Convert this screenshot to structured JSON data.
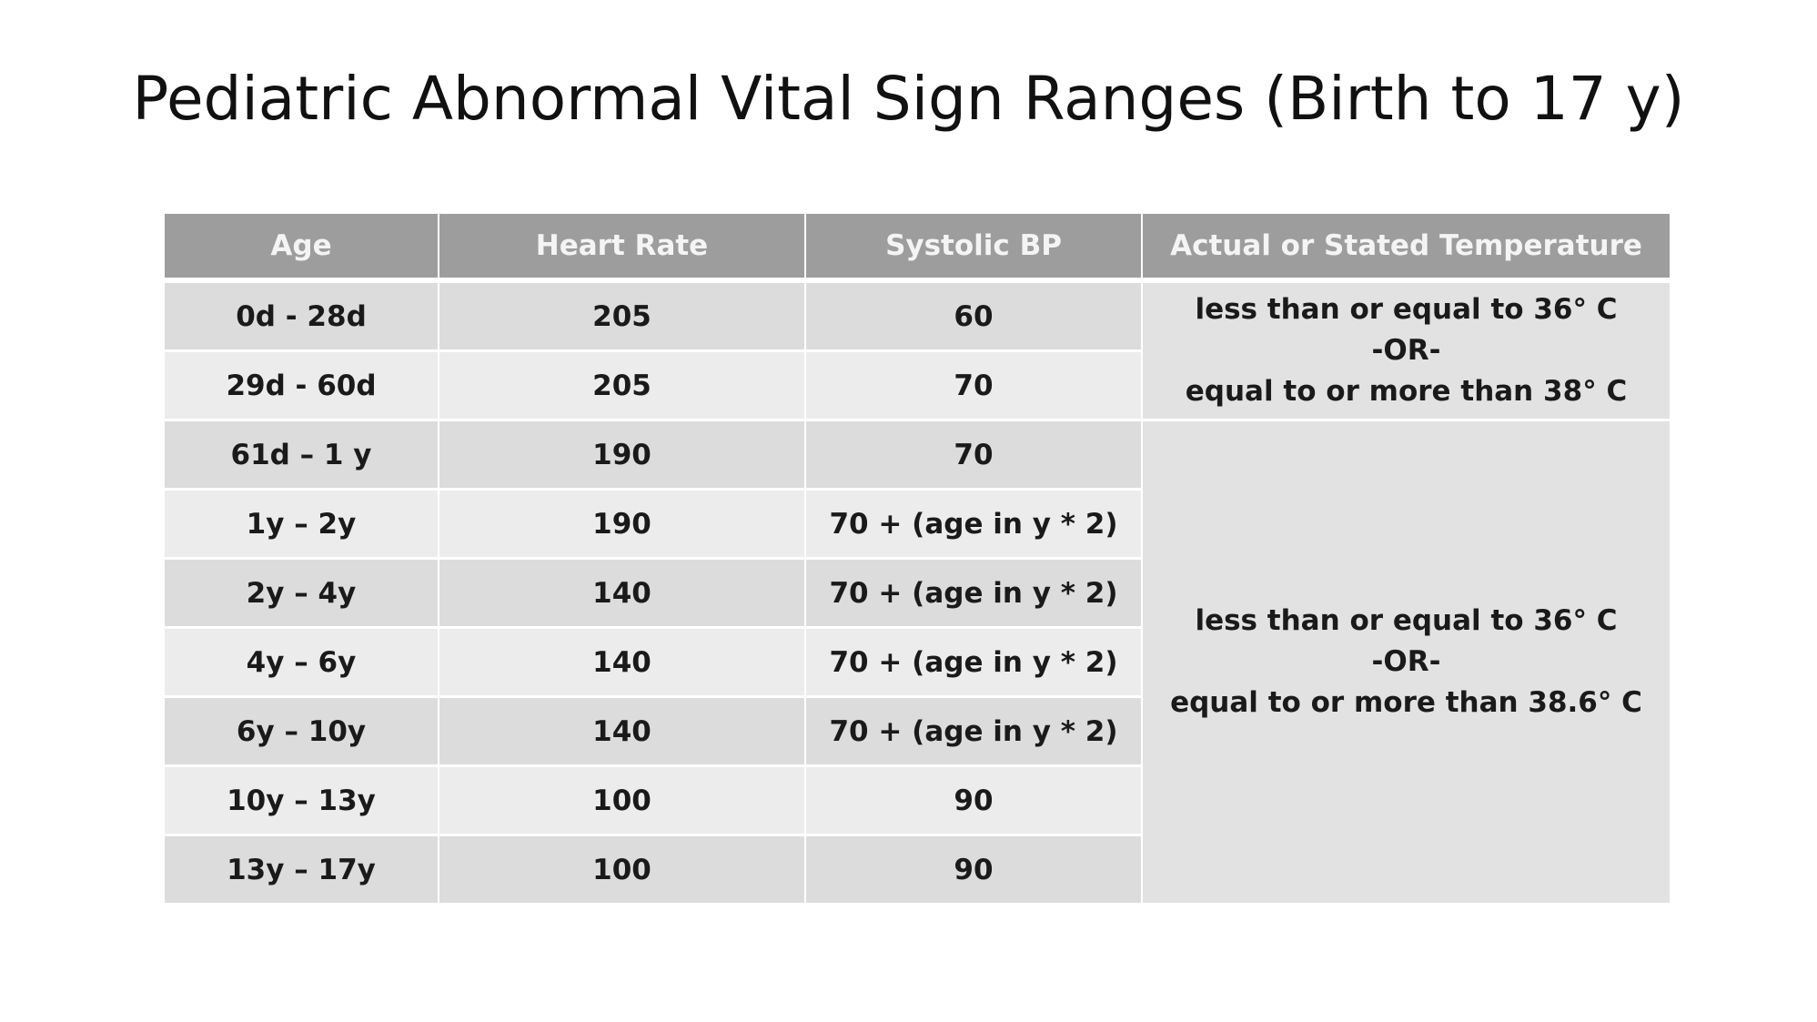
{
  "title": "Pediatric Abnormal Vital Sign Ranges (Birth to 17 y)",
  "table": {
    "headers": [
      "Age",
      "Heart Rate",
      "Systolic BP",
      "Actual or Stated Temperature"
    ],
    "rows": [
      {
        "age": "0d - 28d",
        "heart_rate": "205",
        "systolic_bp": "60"
      },
      {
        "age": "29d - 60d",
        "heart_rate": "205",
        "systolic_bp": "70"
      },
      {
        "age": "61d – 1 y",
        "heart_rate": "190",
        "systolic_bp": "70"
      },
      {
        "age": "1y – 2y",
        "heart_rate": "190",
        "systolic_bp": "70 + (age in y * 2)"
      },
      {
        "age": "2y – 4y",
        "heart_rate": "140",
        "systolic_bp": "70 + (age in y * 2)"
      },
      {
        "age": "4y – 6y",
        "heart_rate": "140",
        "systolic_bp": "70 + (age in y * 2)"
      },
      {
        "age": "6y – 10y",
        "heart_rate": "140",
        "systolic_bp": "70 + (age in y * 2)"
      },
      {
        "age": "10y – 13y",
        "heart_rate": "100",
        "systolic_bp": "90"
      },
      {
        "age": "13y – 17y",
        "heart_rate": "100",
        "systolic_bp": "90"
      }
    ],
    "temperature_groups": [
      {
        "line1": "less than or equal to  36° C",
        "line2": "-OR-",
        "line3": "equal to or more than 38° C"
      },
      {
        "line1": "less than or equal to  36° C",
        "line2": "-OR-",
        "line3": "equal to or more than 38.6° C"
      }
    ]
  }
}
